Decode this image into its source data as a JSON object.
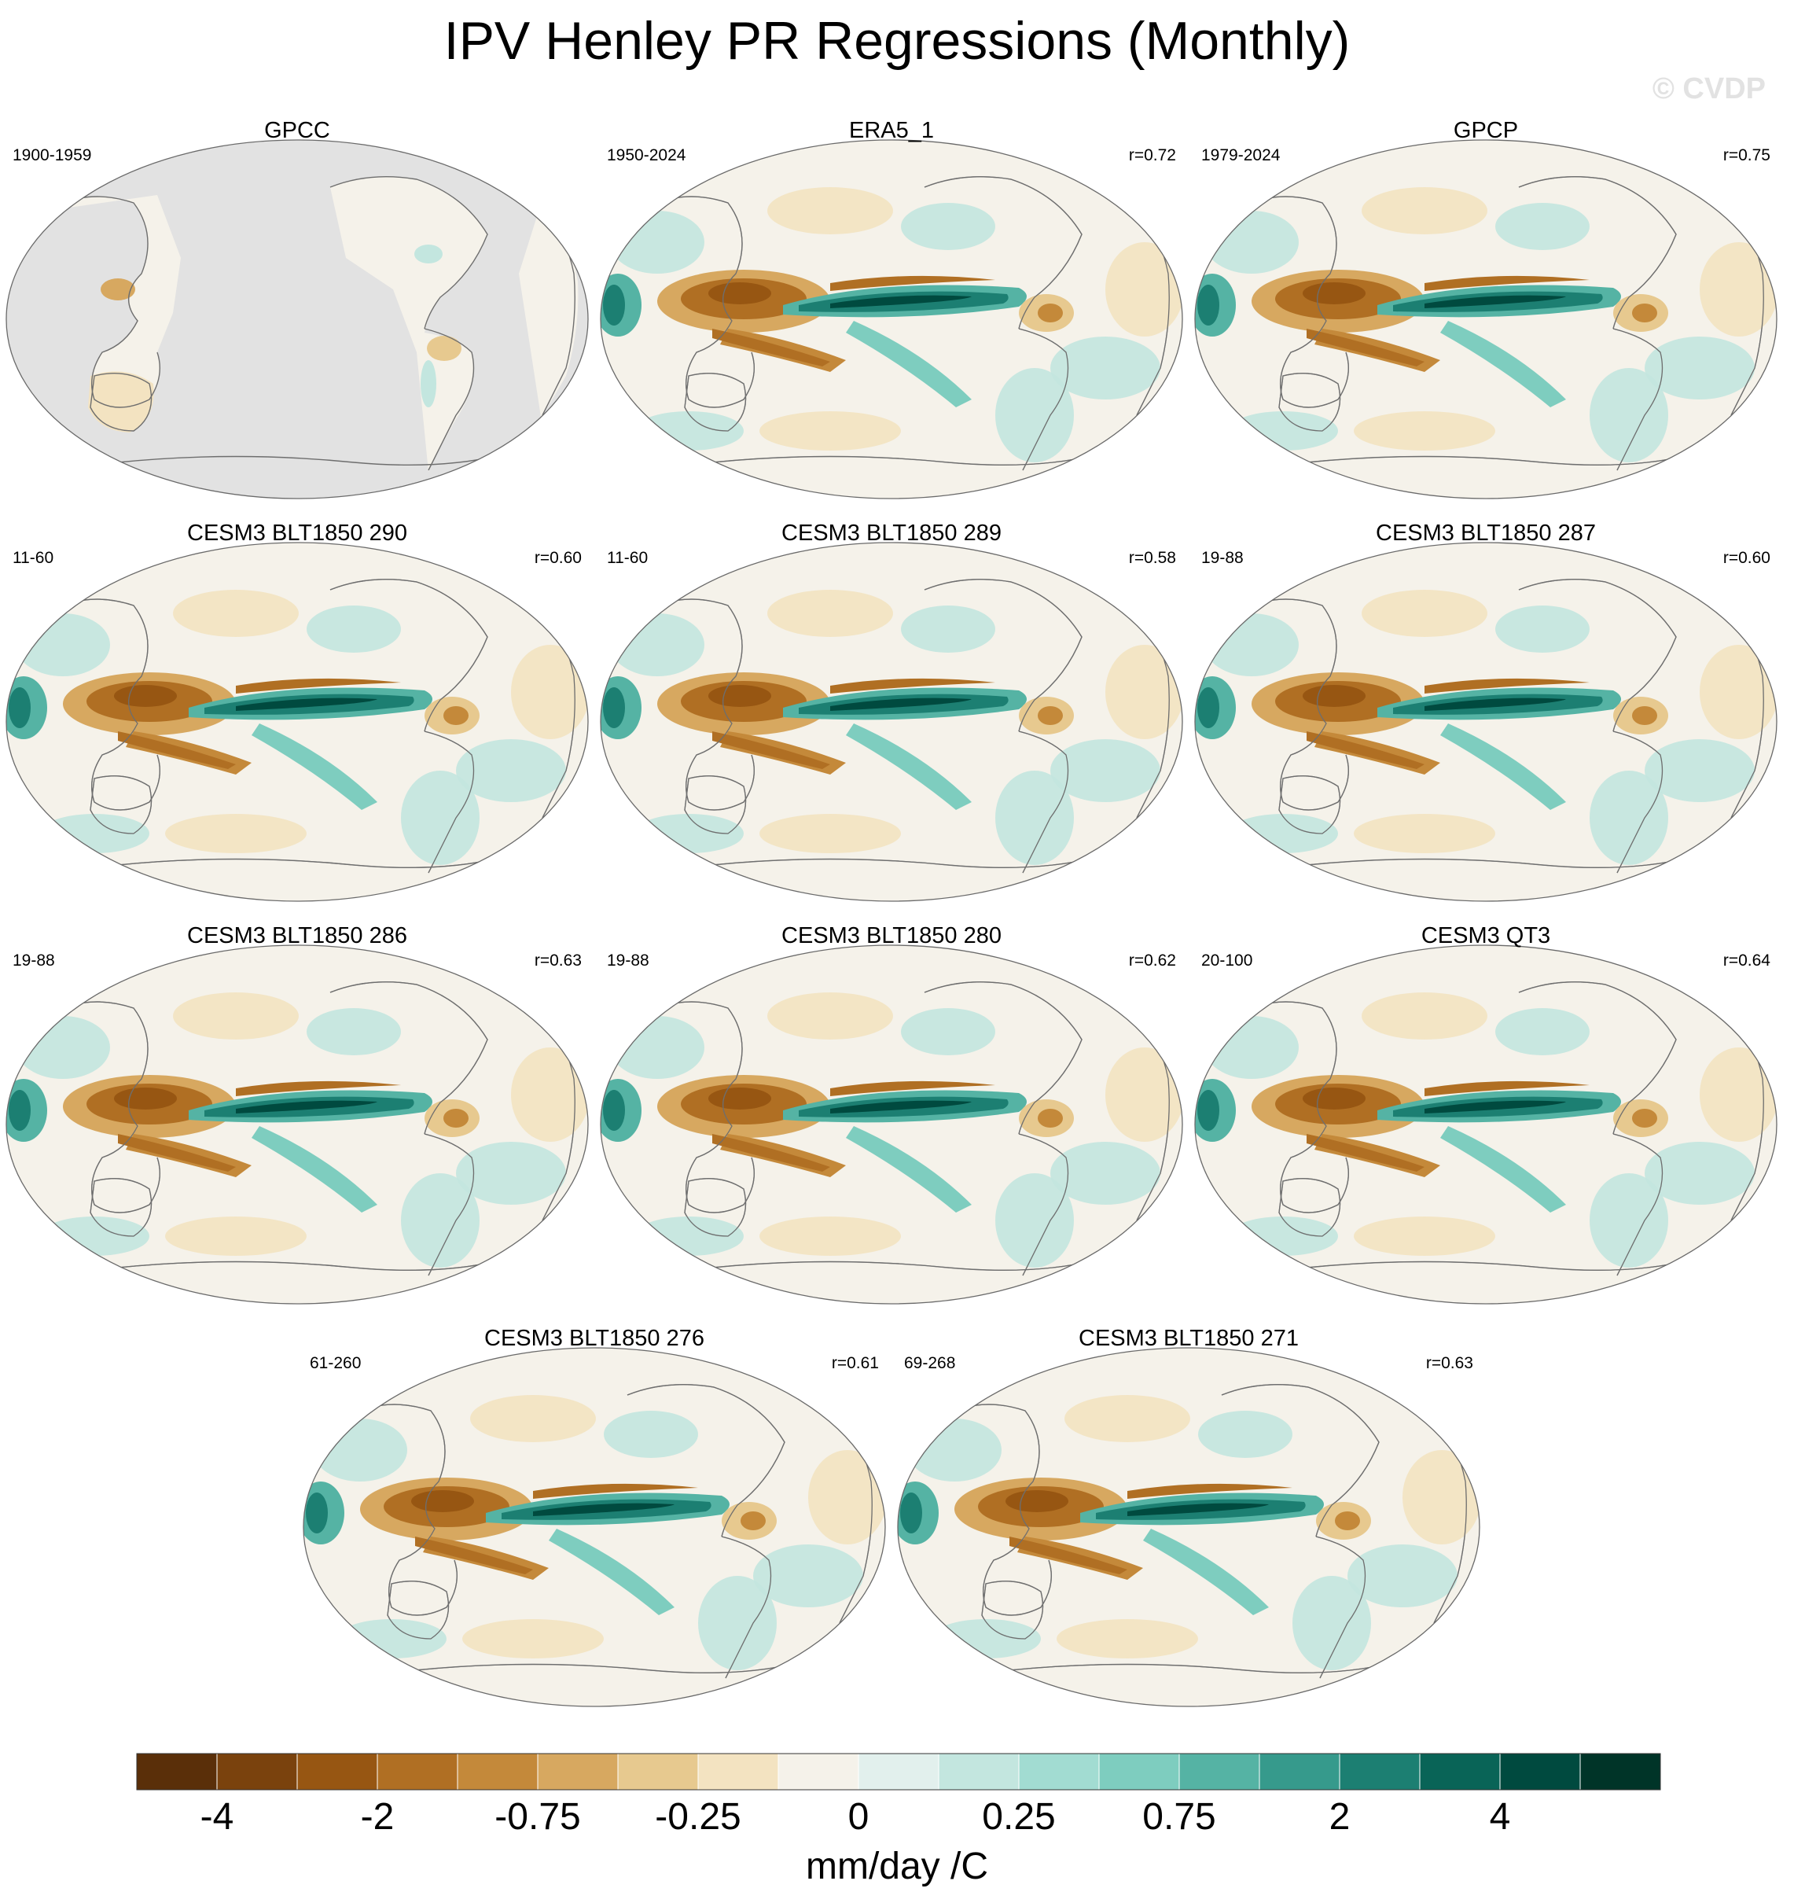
{
  "figure": {
    "title": "IPV Henley PR Regressions (Monthly)",
    "watermark": "© CVDP"
  },
  "panels": [
    {
      "title": "GPCC",
      "period": "1900-1959",
      "corr": "",
      "pattern": "obs-land"
    },
    {
      "title": "ERA5_1",
      "period": "1950-2024",
      "corr": "r=0.72",
      "pattern": "obs"
    },
    {
      "title": "GPCP",
      "period": "1979-2024",
      "corr": "r=0.75",
      "pattern": "obs"
    },
    {
      "title": "CESM3 BLT1850 290",
      "period": "11-60",
      "corr": "r=0.60",
      "pattern": "model"
    },
    {
      "title": "CESM3 BLT1850 289",
      "period": "11-60",
      "corr": "r=0.58",
      "pattern": "model"
    },
    {
      "title": "CESM3 BLT1850 287",
      "period": "19-88",
      "corr": "r=0.60",
      "pattern": "model"
    },
    {
      "title": "CESM3 BLT1850 286",
      "period": "19-88",
      "corr": "r=0.63",
      "pattern": "model"
    },
    {
      "title": "CESM3 BLT1850 280",
      "period": "19-88",
      "corr": "r=0.62",
      "pattern": "model"
    },
    {
      "title": "CESM3 QT3",
      "period": "20-100",
      "corr": "r=0.64",
      "pattern": "model"
    },
    {
      "title": "CESM3 BLT1850 276",
      "period": "61-260",
      "corr": "r=0.61",
      "pattern": "model"
    },
    {
      "title": "CESM3 BLT1850 271",
      "period": "69-268",
      "corr": "r=0.63",
      "pattern": "model"
    }
  ],
  "colorbar": {
    "colors": [
      "#5a2f09",
      "#7a420d",
      "#975612",
      "#b06f23",
      "#c4893a",
      "#d7a860",
      "#e7c98f",
      "#f3e3c1",
      "#f5f2ea",
      "#e2f0ed",
      "#c3e6df",
      "#a2dcd2",
      "#7ecdbf",
      "#55b3a4",
      "#369a8c",
      "#1c7f72",
      "#096457",
      "#004a3f",
      "#003428"
    ],
    "tick_labels": [
      "-4",
      "-2",
      "-0.75",
      "-0.25",
      "0",
      "0.25",
      "0.75",
      "2",
      "4"
    ],
    "tick_boundary_index": [
      2,
      4,
      6,
      8,
      10,
      12,
      14,
      16,
      18
    ],
    "units": "mm/day /C"
  }
}
